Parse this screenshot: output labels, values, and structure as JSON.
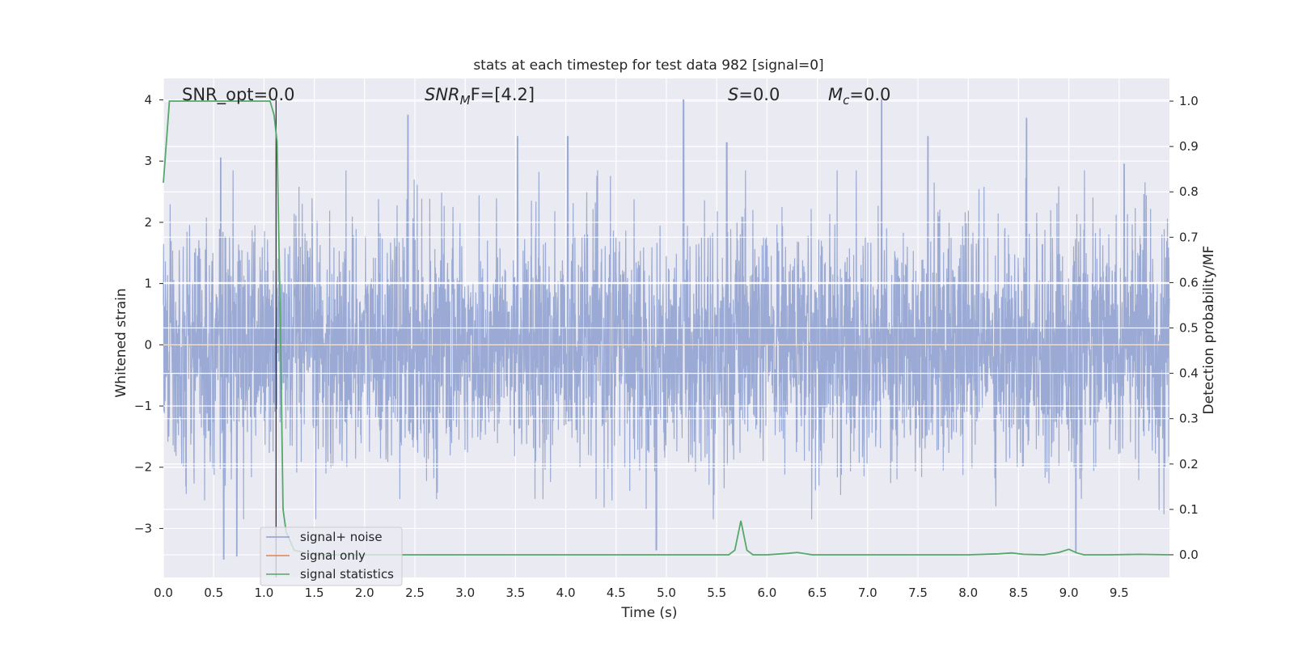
{
  "chart_data": {
    "type": "line",
    "title": "stats at each timestep for test data 982 [signal=0]",
    "xlabel": "Time (s)",
    "ylabel": "Whitened strain",
    "y2label": "Detection probability/MF",
    "xlim": [
      0.0,
      10.0
    ],
    "ylim": [
      -3.8,
      4.35
    ],
    "y2lim": [
      -0.05,
      1.05
    ],
    "xticks": [
      "0.0",
      "0.5",
      "1.0",
      "1.5",
      "2.0",
      "2.5",
      "3.0",
      "3.5",
      "4.0",
      "4.5",
      "5.0",
      "5.5",
      "6.0",
      "6.5",
      "7.0",
      "7.5",
      "8.0",
      "8.5",
      "9.0",
      "9.5"
    ],
    "yticks": [
      "4",
      "3",
      "2",
      "1",
      "0",
      "−1",
      "−2",
      "−3"
    ],
    "y2ticks": [
      "1.0",
      "0.9",
      "0.8",
      "0.7",
      "0.6",
      "0.5",
      "0.4",
      "0.3",
      "0.2",
      "0.1",
      "0.0"
    ],
    "grid": true,
    "legend_position": "lower-left",
    "annotations": {
      "snr_opt": "SNR_opt=0.0",
      "snr_mf_main": "SNR",
      "snr_mf_sub": "M",
      "snr_mf_rest": "F=[4.2]",
      "s_main": "S",
      "s_rest": "=0.0",
      "mc_main": "M",
      "mc_sub": "c",
      "mc_rest": "=0.0"
    },
    "vertical_marker_x": 1.12,
    "series": [
      {
        "name": "signal+ noise",
        "axis": "left",
        "color": "#8c9fcf",
        "description_values": {
          "envelope_max_approx": 4.0,
          "envelope_min_approx": -3.5,
          "dense_band": [
            -1.3,
            1.8
          ],
          "peaks": [
            [
              0.57,
              3.05
            ],
            [
              2.43,
              3.75
            ],
            [
              3.52,
              3.4
            ],
            [
              4.02,
              3.4
            ],
            [
              5.17,
              4.0
            ],
            [
              5.6,
              3.3
            ],
            [
              7.14,
              4.0
            ],
            [
              7.6,
              3.4
            ],
            [
              8.58,
              3.7
            ],
            [
              9.55,
              2.95
            ],
            [
              0.6,
              -3.5
            ],
            [
              0.73,
              -3.45
            ],
            [
              4.9,
              -3.35
            ],
            [
              9.07,
              -3.4
            ]
          ]
        }
      },
      {
        "name": "signal only",
        "axis": "left",
        "color": "#dd8452",
        "x": [
          0.0,
          10.0
        ],
        "y": [
          0.0,
          0.0
        ]
      },
      {
        "name": "signal statistics",
        "axis": "right",
        "color": "#55a868",
        "x": [
          0.0,
          0.06,
          0.12,
          0.2,
          0.3,
          0.5,
          0.8,
          1.06,
          1.1,
          1.13,
          1.16,
          1.19,
          1.22,
          1.3,
          1.5,
          2.0,
          3.0,
          4.0,
          5.0,
          5.5,
          5.62,
          5.68,
          5.74,
          5.8,
          5.86,
          6.0,
          6.2,
          6.3,
          6.45,
          7.0,
          8.0,
          8.3,
          8.43,
          8.55,
          8.75,
          8.9,
          9.0,
          9.08,
          9.15,
          9.4,
          9.7,
          10.0
        ],
        "y": [
          0.82,
          1.0,
          1.0,
          1.0,
          1.0,
          1.0,
          1.0,
          1.0,
          0.97,
          0.91,
          0.55,
          0.1,
          0.05,
          0.01,
          0.0,
          0.0,
          0.0,
          0.0,
          0.0,
          0.0,
          0.0,
          0.01,
          0.075,
          0.01,
          0.0,
          0.0,
          0.003,
          0.005,
          0.0,
          0.0,
          0.0,
          0.002,
          0.004,
          0.001,
          0.0,
          0.005,
          0.012,
          0.004,
          0.0,
          0.0,
          0.001,
          0.0
        ]
      }
    ]
  }
}
